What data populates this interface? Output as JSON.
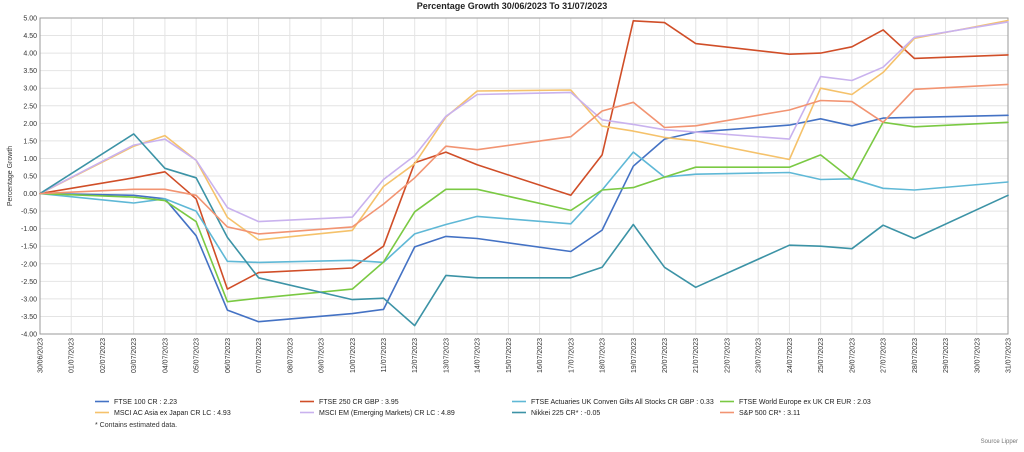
{
  "chart_data": {
    "type": "line",
    "title": "Percentage Growth 30/06/2023 To 31/07/2023",
    "ylabel": "Percentage Growth",
    "xlabel": "",
    "ylim": [
      -4.0,
      5.0
    ],
    "y_ticks": [
      "5.00",
      "4.50",
      "4.00",
      "3.50",
      "3.00",
      "2.50",
      "2.00",
      "1.50",
      "1.00",
      "0.50",
      "0.00",
      "-0.50",
      "-1.00",
      "-1.50",
      "-2.00",
      "-2.50",
      "-3.00",
      "-3.50",
      "-4.00"
    ],
    "x": [
      "30/06/2023",
      "01/07/2023",
      "02/07/2023",
      "03/07/2023",
      "04/07/2023",
      "05/07/2023",
      "06/07/2023",
      "07/07/2023",
      "08/07/2023",
      "09/07/2023",
      "10/07/2023",
      "11/07/2023",
      "12/07/2023",
      "13/07/2023",
      "14/07/2023",
      "15/07/2023",
      "16/07/2023",
      "17/07/2023",
      "18/07/2023",
      "19/07/2023",
      "20/07/2023",
      "21/07/2023",
      "22/07/2023",
      "23/07/2023",
      "24/07/2023",
      "25/07/2023",
      "26/07/2023",
      "27/07/2023",
      "28/07/2023",
      "29/07/2023",
      "30/07/2023",
      "31/07/2023"
    ],
    "grid": true,
    "legend_position": "bottom",
    "series": [
      {
        "name": "FTSE 100 CR : 2.23",
        "color": "#4472c4",
        "points": [
          [
            "30/06/2023",
            0
          ],
          [
            "03/07/2023",
            -0.05
          ],
          [
            "04/07/2023",
            -0.15
          ],
          [
            "05/07/2023",
            -1.2
          ],
          [
            "06/07/2023",
            -3.32
          ],
          [
            "07/07/2023",
            -3.65
          ],
          [
            "10/07/2023",
            -3.42
          ],
          [
            "11/07/2023",
            -3.3
          ],
          [
            "12/07/2023",
            -1.52
          ],
          [
            "13/07/2023",
            -1.22
          ],
          [
            "14/07/2023",
            -1.28
          ],
          [
            "17/07/2023",
            -1.65
          ],
          [
            "18/07/2023",
            -1.04
          ],
          [
            "19/07/2023",
            0.78
          ],
          [
            "20/07/2023",
            1.55
          ],
          [
            "21/07/2023",
            1.75
          ],
          [
            "24/07/2023",
            1.95
          ],
          [
            "25/07/2023",
            2.13
          ],
          [
            "26/07/2023",
            1.93
          ],
          [
            "27/07/2023",
            2.15
          ],
          [
            "31/07/2023",
            2.23
          ]
        ]
      },
      {
        "name": "FTSE 250 CR GBP : 3.95",
        "color": "#d04e28",
        "points": [
          [
            "30/06/2023",
            0
          ],
          [
            "03/07/2023",
            0.45
          ],
          [
            "04/07/2023",
            0.62
          ],
          [
            "05/07/2023",
            -0.15
          ],
          [
            "06/07/2023",
            -2.72
          ],
          [
            "07/07/2023",
            -2.25
          ],
          [
            "10/07/2023",
            -2.12
          ],
          [
            "11/07/2023",
            -1.5
          ],
          [
            "12/07/2023",
            0.88
          ],
          [
            "13/07/2023",
            1.18
          ],
          [
            "14/07/2023",
            0.82
          ],
          [
            "17/07/2023",
            -0.05
          ],
          [
            "18/07/2023",
            1.1
          ],
          [
            "19/07/2023",
            4.92
          ],
          [
            "20/07/2023",
            4.87
          ],
          [
            "21/07/2023",
            4.27
          ],
          [
            "24/07/2023",
            3.97
          ],
          [
            "25/07/2023",
            4.0
          ],
          [
            "26/07/2023",
            4.18
          ],
          [
            "27/07/2023",
            4.66
          ],
          [
            "28/07/2023",
            3.85
          ],
          [
            "31/07/2023",
            3.95
          ]
        ]
      },
      {
        "name": "FTSE Actuaries UK Conven Gilts All Stocks CR GBP : 0.33",
        "color": "#5fb8d6",
        "points": [
          [
            "30/06/2023",
            0
          ],
          [
            "03/07/2023",
            -0.27
          ],
          [
            "04/07/2023",
            -0.15
          ],
          [
            "05/07/2023",
            -0.5
          ],
          [
            "06/07/2023",
            -1.93
          ],
          [
            "07/07/2023",
            -1.96
          ],
          [
            "10/07/2023",
            -1.9
          ],
          [
            "11/07/2023",
            -1.96
          ],
          [
            "12/07/2023",
            -1.15
          ],
          [
            "13/07/2023",
            -0.88
          ],
          [
            "14/07/2023",
            -0.65
          ],
          [
            "17/07/2023",
            -0.86
          ],
          [
            "18/07/2023",
            0.1
          ],
          [
            "19/07/2023",
            1.18
          ],
          [
            "20/07/2023",
            0.47
          ],
          [
            "21/07/2023",
            0.55
          ],
          [
            "24/07/2023",
            0.6
          ],
          [
            "25/07/2023",
            0.4
          ],
          [
            "26/07/2023",
            0.42
          ],
          [
            "27/07/2023",
            0.15
          ],
          [
            "28/07/2023",
            0.1
          ],
          [
            "31/07/2023",
            0.33
          ]
        ]
      },
      {
        "name": "FTSE World Europe ex UK CR EUR : 2.03",
        "color": "#7ac943",
        "points": [
          [
            "30/06/2023",
            0
          ],
          [
            "03/07/2023",
            -0.1
          ],
          [
            "04/07/2023",
            -0.2
          ],
          [
            "05/07/2023",
            -0.8
          ],
          [
            "06/07/2023",
            -3.08
          ],
          [
            "07/07/2023",
            -2.98
          ],
          [
            "10/07/2023",
            -2.72
          ],
          [
            "11/07/2023",
            -1.95
          ],
          [
            "12/07/2023",
            -0.52
          ],
          [
            "13/07/2023",
            0.12
          ],
          [
            "14/07/2023",
            0.12
          ],
          [
            "17/07/2023",
            -0.48
          ],
          [
            "18/07/2023",
            0.1
          ],
          [
            "19/07/2023",
            0.17
          ],
          [
            "20/07/2023",
            0.47
          ],
          [
            "21/07/2023",
            0.75
          ],
          [
            "24/07/2023",
            0.75
          ],
          [
            "25/07/2023",
            1.1
          ],
          [
            "26/07/2023",
            0.4
          ],
          [
            "27/07/2023",
            2.03
          ],
          [
            "28/07/2023",
            1.9
          ],
          [
            "31/07/2023",
            2.03
          ]
        ]
      },
      {
        "name": "MSCI AC Asia ex Japan CR LC : 4.93",
        "color": "#f5c26b",
        "points": [
          [
            "30/06/2023",
            0
          ],
          [
            "03/07/2023",
            1.35
          ],
          [
            "04/07/2023",
            1.65
          ],
          [
            "05/07/2023",
            0.95
          ],
          [
            "06/07/2023",
            -0.68
          ],
          [
            "07/07/2023",
            -1.32
          ],
          [
            "10/07/2023",
            -1.05
          ],
          [
            "11/07/2023",
            0.2
          ],
          [
            "12/07/2023",
            0.85
          ],
          [
            "13/07/2023",
            2.18
          ],
          [
            "14/07/2023",
            2.92
          ],
          [
            "17/07/2023",
            2.95
          ],
          [
            "18/07/2023",
            1.92
          ],
          [
            "19/07/2023",
            1.78
          ],
          [
            "20/07/2023",
            1.6
          ],
          [
            "21/07/2023",
            1.5
          ],
          [
            "24/07/2023",
            0.97
          ],
          [
            "25/07/2023",
            3.0
          ],
          [
            "26/07/2023",
            2.82
          ],
          [
            "27/07/2023",
            3.45
          ],
          [
            "28/07/2023",
            4.42
          ],
          [
            "31/07/2023",
            4.93
          ]
        ]
      },
      {
        "name": "MSCI EM (Emerging Markets) CR LC : 4.89",
        "color": "#c9b2ee",
        "points": [
          [
            "30/06/2023",
            0
          ],
          [
            "03/07/2023",
            1.38
          ],
          [
            "04/07/2023",
            1.55
          ],
          [
            "05/07/2023",
            0.95
          ],
          [
            "06/07/2023",
            -0.4
          ],
          [
            "07/07/2023",
            -0.8
          ],
          [
            "10/07/2023",
            -0.67
          ],
          [
            "11/07/2023",
            0.4
          ],
          [
            "12/07/2023",
            1.08
          ],
          [
            "13/07/2023",
            2.2
          ],
          [
            "14/07/2023",
            2.82
          ],
          [
            "17/07/2023",
            2.88
          ],
          [
            "18/07/2023",
            2.1
          ],
          [
            "19/07/2023",
            1.97
          ],
          [
            "20/07/2023",
            1.82
          ],
          [
            "21/07/2023",
            1.75
          ],
          [
            "24/07/2023",
            1.55
          ],
          [
            "25/07/2023",
            3.33
          ],
          [
            "26/07/2023",
            3.22
          ],
          [
            "27/07/2023",
            3.6
          ],
          [
            "28/07/2023",
            4.45
          ],
          [
            "31/07/2023",
            4.89
          ]
        ]
      },
      {
        "name": "Nikkei 225 CR* : -0.05",
        "color": "#3c93a6",
        "points": [
          [
            "30/06/2023",
            0
          ],
          [
            "03/07/2023",
            1.7
          ],
          [
            "04/07/2023",
            0.72
          ],
          [
            "05/07/2023",
            0.45
          ],
          [
            "06/07/2023",
            -1.25
          ],
          [
            "07/07/2023",
            -2.4
          ],
          [
            "10/07/2023",
            -3.02
          ],
          [
            "11/07/2023",
            -2.98
          ],
          [
            "12/07/2023",
            -3.76
          ],
          [
            "13/07/2023",
            -2.33
          ],
          [
            "14/07/2023",
            -2.4
          ],
          [
            "17/07/2023",
            -2.4
          ],
          [
            "18/07/2023",
            -2.1
          ],
          [
            "19/07/2023",
            -0.88
          ],
          [
            "20/07/2023",
            -2.1
          ],
          [
            "21/07/2023",
            -2.67
          ],
          [
            "24/07/2023",
            -1.47
          ],
          [
            "25/07/2023",
            -1.5
          ],
          [
            "26/07/2023",
            -1.57
          ],
          [
            "27/07/2023",
            -0.9
          ],
          [
            "28/07/2023",
            -1.28
          ],
          [
            "31/07/2023",
            -0.05
          ]
        ]
      },
      {
        "name": "S&P 500 CR* : 3.11",
        "color": "#f29472",
        "points": [
          [
            "30/06/2023",
            0
          ],
          [
            "03/07/2023",
            0.12
          ],
          [
            "04/07/2023",
            0.12
          ],
          [
            "05/07/2023",
            -0.05
          ],
          [
            "06/07/2023",
            -0.95
          ],
          [
            "07/07/2023",
            -1.15
          ],
          [
            "10/07/2023",
            -0.95
          ],
          [
            "11/07/2023",
            -0.3
          ],
          [
            "12/07/2023",
            0.45
          ],
          [
            "13/07/2023",
            1.35
          ],
          [
            "14/07/2023",
            1.25
          ],
          [
            "17/07/2023",
            1.62
          ],
          [
            "18/07/2023",
            2.35
          ],
          [
            "19/07/2023",
            2.6
          ],
          [
            "20/07/2023",
            1.88
          ],
          [
            "21/07/2023",
            1.93
          ],
          [
            "24/07/2023",
            2.38
          ],
          [
            "25/07/2023",
            2.65
          ],
          [
            "26/07/2023",
            2.62
          ],
          [
            "27/07/2023",
            2.03
          ],
          [
            "28/07/2023",
            2.97
          ],
          [
            "31/07/2023",
            3.11
          ]
        ]
      }
    ],
    "footnote": "*  Contains estimated data.",
    "source": "Source Lipper"
  }
}
